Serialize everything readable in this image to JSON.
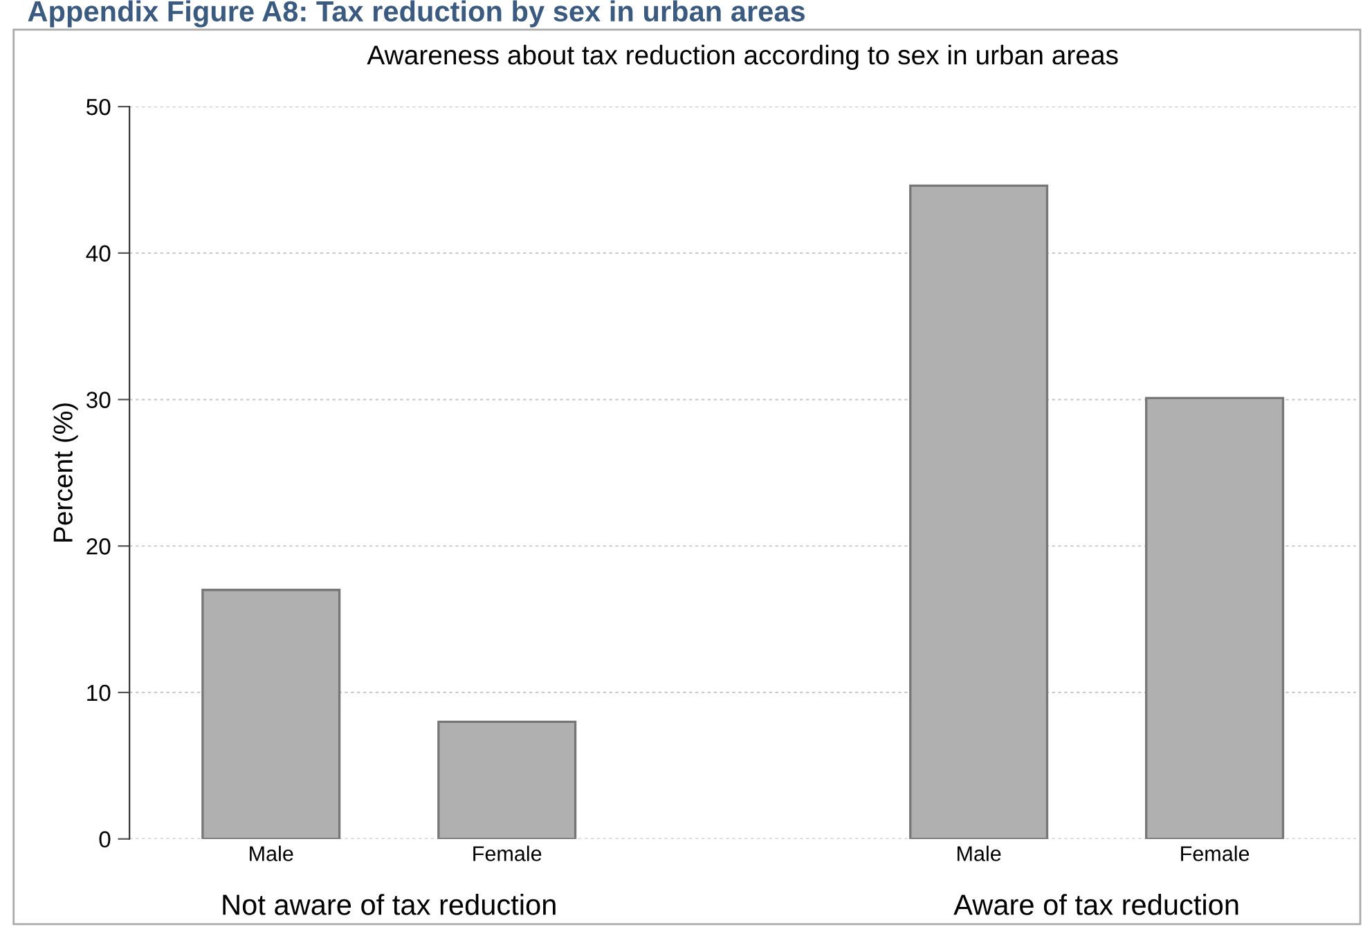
{
  "chart_data": {
    "type": "bar",
    "title": "Awareness about tax reduction according to sex in urban areas",
    "ylabel": "Percent (%)",
    "categories": [
      "Male",
      "Female",
      null,
      "Male",
      "Female"
    ],
    "values": [
      17,
      8,
      null,
      44.6,
      30.1
    ],
    "color": "#b0b0b0",
    "ylim": [
      0,
      50
    ],
    "yticks": [
      0,
      10,
      20,
      30,
      40,
      50
    ],
    "grid": "y",
    "annotations": [
      "Appendix Figure A8: Tax reduction by sex in urban areas",
      "Not aware of tax reduction",
      "Aware of tax reduction"
    ]
  }
}
